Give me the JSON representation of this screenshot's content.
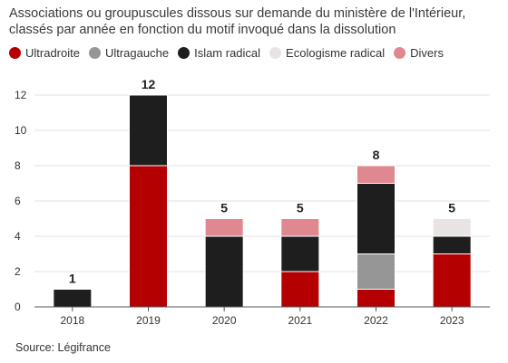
{
  "title": "Associations ou groupuscules dissous sur demande du ministère de l'Intérieur, classés par année en fonction du motif invoqué dans la dissolution",
  "source": "Source: Légifrance",
  "legend": [
    {
      "name": "Ultradroite",
      "color": "#b40000"
    },
    {
      "name": "Ultragauche",
      "color": "#969696"
    },
    {
      "name": "Islam radical",
      "color": "#1e1e1e"
    },
    {
      "name": "Ecologisme radical",
      "color": "#e8e4e3"
    },
    {
      "name": "Divers",
      "color": "#e0888f"
    }
  ],
  "chart_data": {
    "type": "bar",
    "stacked": true,
    "title": "Associations ou groupuscules dissous sur demande du ministère de l'Intérieur, classés par année en fonction du motif invoqué dans la dissolution",
    "categories": [
      "2018",
      "2019",
      "2020",
      "2021",
      "2022",
      "2023"
    ],
    "series": [
      {
        "name": "Ultradroite",
        "color": "#b40000",
        "values": [
          0,
          8,
          0,
          2,
          1,
          3
        ]
      },
      {
        "name": "Ultragauche",
        "color": "#969696",
        "values": [
          0,
          0,
          0,
          0,
          2,
          0
        ]
      },
      {
        "name": "Islam radical",
        "color": "#1e1e1e",
        "values": [
          1,
          4,
          4,
          2,
          4,
          1
        ]
      },
      {
        "name": "Ecologisme radical",
        "color": "#e8e4e3",
        "values": [
          0,
          0,
          0,
          0,
          0,
          1
        ]
      },
      {
        "name": "Divers",
        "color": "#e0888f",
        "values": [
          0,
          0,
          1,
          1,
          1,
          0
        ]
      }
    ],
    "totals": [
      1,
      12,
      5,
      5,
      8,
      5
    ],
    "ylim": [
      0,
      13
    ],
    "yticks": [
      0,
      2,
      4,
      6,
      8,
      10,
      12
    ],
    "grid": true,
    "legend_position": "top-left"
  }
}
